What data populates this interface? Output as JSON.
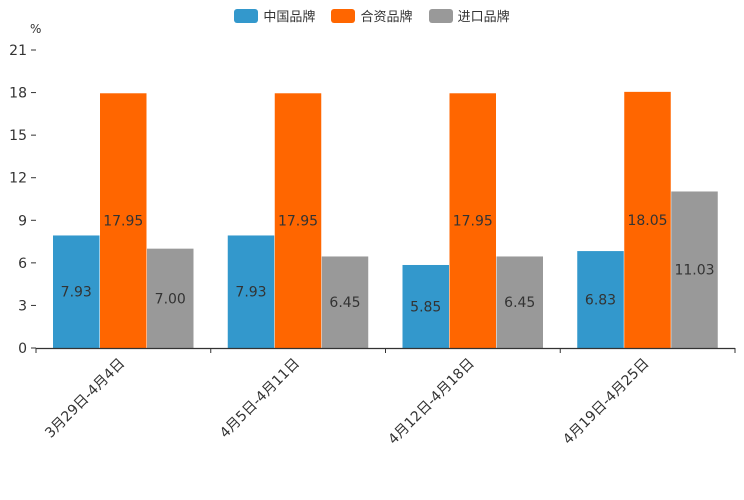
{
  "chart_data": {
    "type": "bar",
    "title": "",
    "xlabel": "",
    "ylabel": "%",
    "ylim": [
      0,
      21
    ],
    "yticks": [
      0,
      3,
      6,
      9,
      12,
      15,
      18,
      21
    ],
    "categories": [
      "3月29日-4月4日",
      "4月5日-4月11日",
      "4月12日-4月18日",
      "4月19日-4月25日"
    ],
    "series": [
      {
        "name": "中国品牌",
        "color": "#3398cc",
        "values": [
          7.93,
          7.93,
          5.85,
          6.83
        ],
        "labels": [
          "7.93",
          "7.93",
          "5.85",
          "6.83"
        ]
      },
      {
        "name": "合资品牌",
        "color": "#ff6600",
        "values": [
          17.95,
          17.95,
          17.95,
          18.05
        ],
        "labels": [
          "17.95",
          "17.95",
          "17.95",
          "18.05"
        ]
      },
      {
        "name": "进口品牌",
        "color": "#999999",
        "values": [
          7.0,
          6.45,
          6.45,
          11.03
        ],
        "labels": [
          "7.00",
          "6.45",
          "6.45",
          "11.03"
        ]
      }
    ],
    "grid": false,
    "legend_position": "top-center"
  }
}
